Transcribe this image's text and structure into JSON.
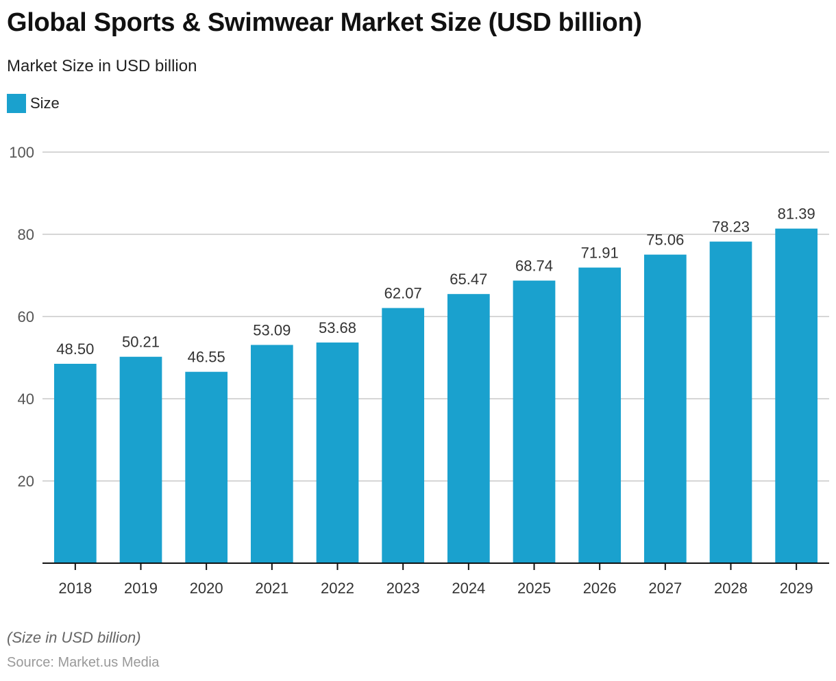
{
  "chart_data": {
    "type": "bar",
    "title": "Global Sports & Swimwear Market Size (USD billion)",
    "subtitle": "Market Size in USD billion",
    "xlabel": "",
    "ylabel": "",
    "categories": [
      "2018",
      "2019",
      "2020",
      "2021",
      "2022",
      "2023",
      "2024",
      "2025",
      "2026",
      "2027",
      "2028",
      "2029"
    ],
    "series": [
      {
        "name": "Size",
        "color": "#1aa1ce",
        "values": [
          48.5,
          50.21,
          46.55,
          53.09,
          53.68,
          62.07,
          65.47,
          68.74,
          71.91,
          75.06,
          78.23,
          81.39
        ]
      }
    ],
    "data_labels": [
      "48.50",
      "50.21",
      "46.55",
      "53.09",
      "53.68",
      "62.07",
      "65.47",
      "68.74",
      "71.91",
      "75.06",
      "78.23",
      "81.39"
    ],
    "ylim": [
      0,
      100
    ],
    "yticks": [
      20,
      40,
      60,
      80,
      100
    ],
    "grid": true,
    "legend_position": "top-left",
    "note": "(Size in USD billion)",
    "source": "Source: Market.us Media"
  }
}
